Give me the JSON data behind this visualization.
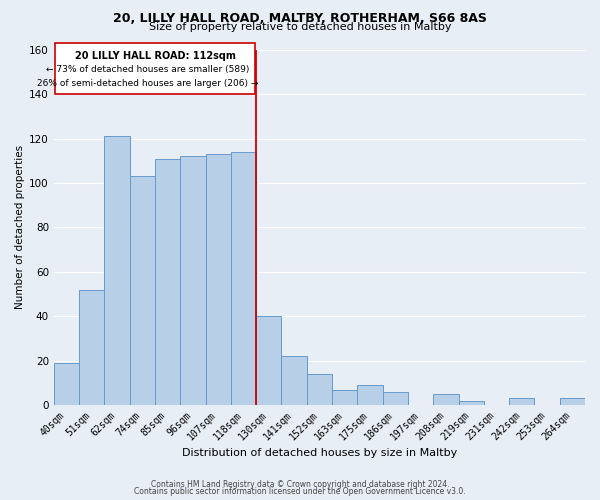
{
  "title1": "20, LILLY HALL ROAD, MALTBY, ROTHERHAM, S66 8AS",
  "title2": "Size of property relative to detached houses in Maltby",
  "xlabel": "Distribution of detached houses by size in Maltby",
  "ylabel": "Number of detached properties",
  "footer1": "Contains HM Land Registry data © Crown copyright and database right 2024.",
  "footer2": "Contains public sector information licensed under the Open Government Licence v3.0.",
  "annotation_line1": "20 LILLY HALL ROAD: 112sqm",
  "annotation_line2": "← 73% of detached houses are smaller (589)",
  "annotation_line3": "26% of semi-detached houses are larger (206) →",
  "bar_labels": [
    "40sqm",
    "51sqm",
    "62sqm",
    "74sqm",
    "85sqm",
    "96sqm",
    "107sqm",
    "118sqm",
    "130sqm",
    "141sqm",
    "152sqm",
    "163sqm",
    "175sqm",
    "186sqm",
    "197sqm",
    "208sqm",
    "219sqm",
    "231sqm",
    "242sqm",
    "253sqm",
    "264sqm"
  ],
  "bar_values": [
    19,
    52,
    121,
    103,
    111,
    112,
    113,
    114,
    40,
    22,
    14,
    7,
    9,
    6,
    0,
    5,
    2,
    0,
    3,
    0,
    3
  ],
  "bar_color": "#b8cfe8",
  "bar_edge_color": "#6699cc",
  "reference_line_x": 7.5,
  "reference_line_color": "#cc0000",
  "ylim": [
    0,
    160
  ],
  "yticks": [
    0,
    20,
    40,
    60,
    80,
    100,
    120,
    140,
    160
  ],
  "annotation_box_edge_color": "#cc0000",
  "annotation_box_face_color": "#ffffff",
  "background_color": "#e8eef5",
  "title_fontsize": 9,
  "subtitle_fontsize": 8,
  "xlabel_fontsize": 8,
  "ylabel_fontsize": 7.5,
  "tick_fontsize": 7,
  "footer_fontsize": 5.5
}
